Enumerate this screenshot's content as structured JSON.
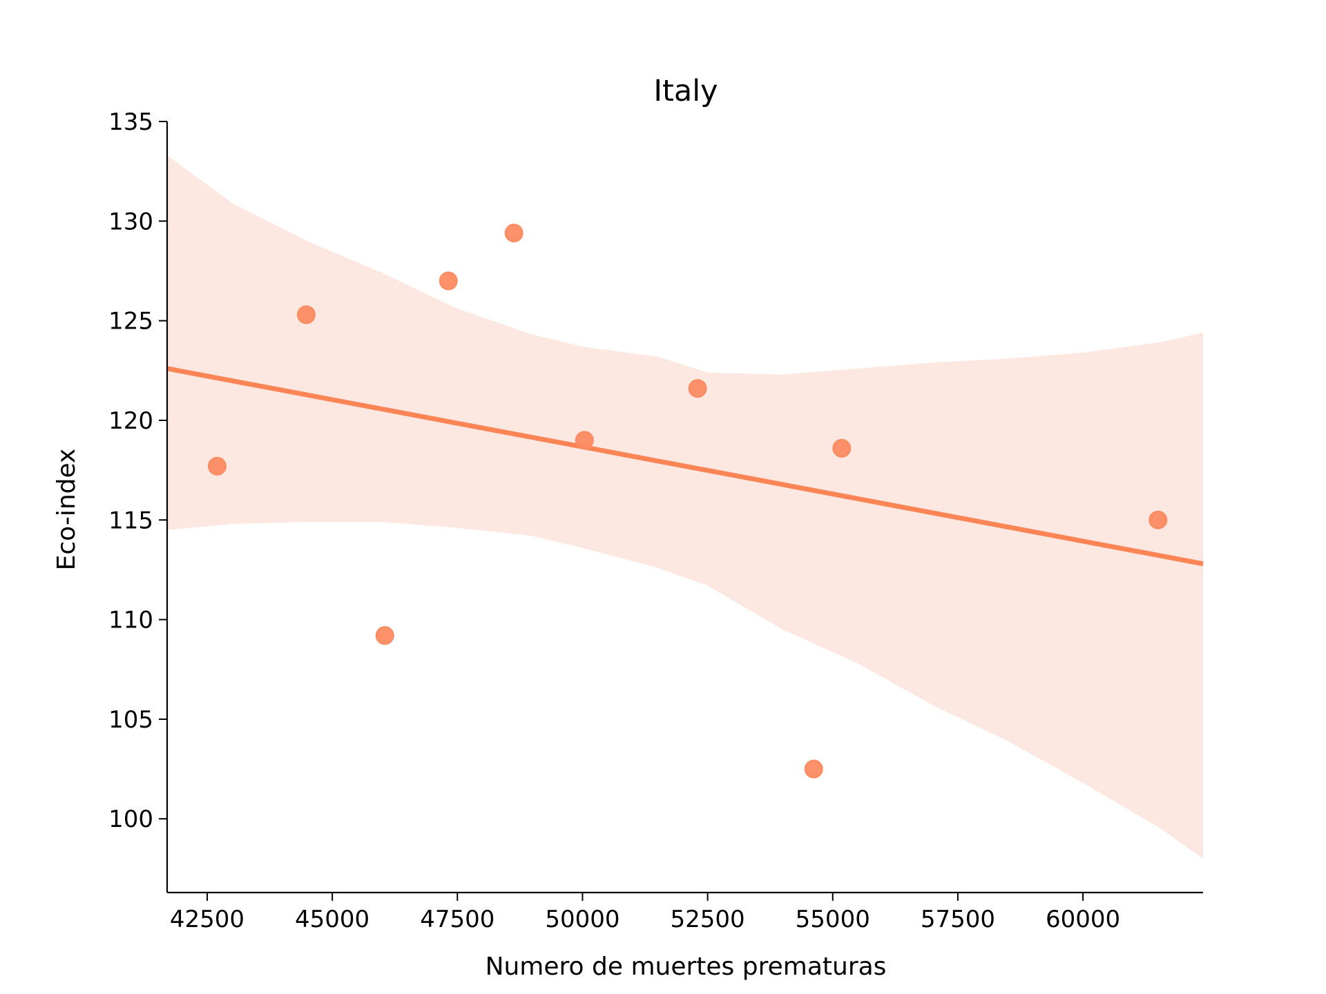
{
  "chart_data": {
    "type": "scatter",
    "title": "Italy",
    "xlabel": "Numero de muertes prematuras",
    "ylabel": "Eco-index",
    "xlim": [
      41700,
      62400
    ],
    "ylim": [
      96.3,
      135
    ],
    "xticks": [
      42500,
      45000,
      47500,
      50000,
      52500,
      55000,
      57500,
      60000
    ],
    "yticks": [
      100,
      105,
      110,
      115,
      120,
      125,
      130,
      135
    ],
    "grid": false,
    "legend": "none",
    "series": [
      {
        "points": [
          {
            "x": 42700,
            "y": 117.7
          },
          {
            "x": 44480,
            "y": 125.3
          },
          {
            "x": 46050,
            "y": 109.2
          },
          {
            "x": 47320,
            "y": 127.0
          },
          {
            "x": 48630,
            "y": 129.4
          },
          {
            "x": 50040,
            "y": 119.0
          },
          {
            "x": 52300,
            "y": 121.6
          },
          {
            "x": 54620,
            "y": 102.5
          },
          {
            "x": 55180,
            "y": 118.6
          },
          {
            "x": 61500,
            "y": 115.0
          }
        ],
        "regression": {
          "x": [
            41700,
            62400
          ],
          "y": [
            122.6,
            112.8
          ]
        },
        "confidence_band": {
          "x": [
            41700,
            43000,
            44500,
            46000,
            47500,
            49000,
            50000,
            51500,
            52500,
            54000,
            55500,
            57000,
            58500,
            60000,
            61500,
            62400
          ],
          "upper": [
            133.3,
            130.9,
            129.0,
            127.4,
            125.6,
            124.3,
            123.7,
            123.2,
            122.4,
            122.3,
            122.6,
            122.9,
            123.1,
            123.4,
            123.9,
            124.4
          ],
          "lower": [
            114.5,
            114.8,
            114.9,
            114.9,
            114.6,
            114.2,
            113.6,
            112.6,
            111.7,
            109.5,
            107.8,
            105.7,
            103.9,
            101.8,
            99.6,
            98.0
          ]
        }
      }
    ],
    "colors": {
      "points": "#fc8b62",
      "line": "#fc8455",
      "band": "#fde8e1",
      "axis": "#000000"
    }
  }
}
